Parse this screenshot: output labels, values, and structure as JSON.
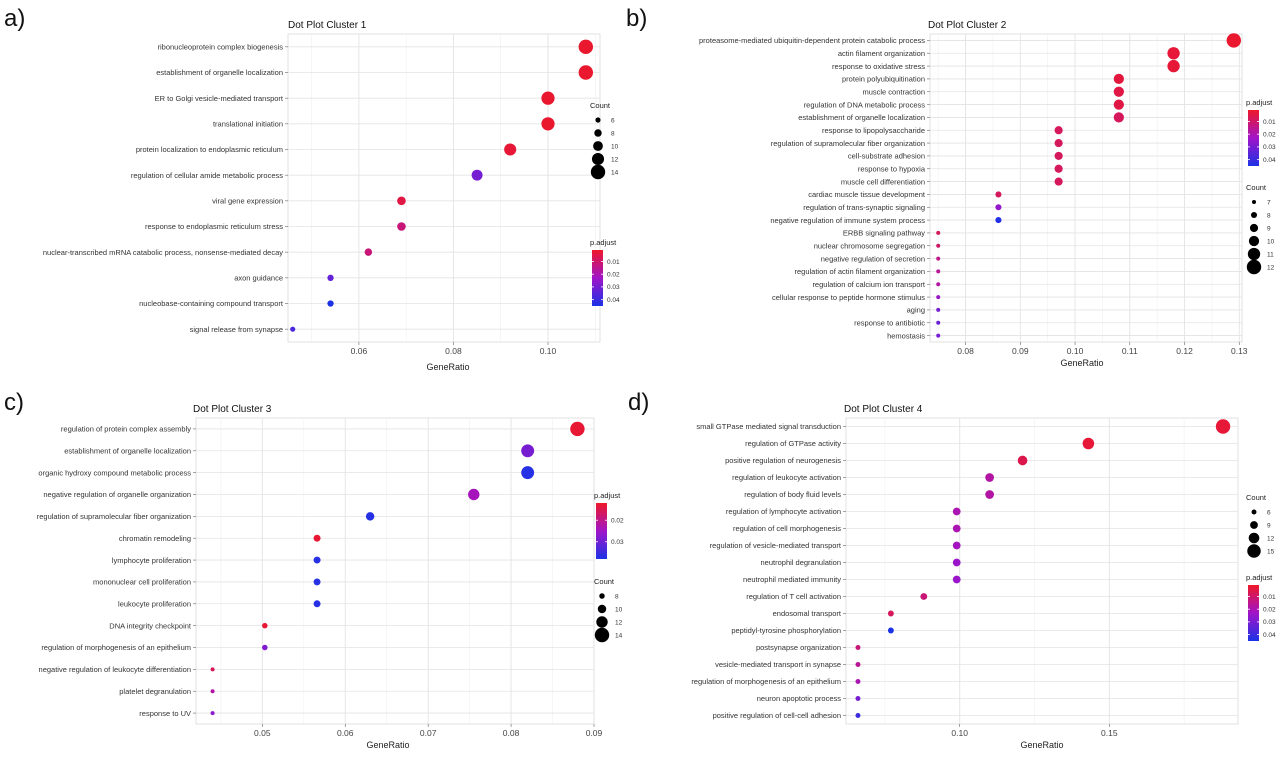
{
  "chart_data": [
    {
      "panel": "a)",
      "type": "scatter",
      "title": "Dot Plot Cluster 1",
      "xlabel": "GeneRatio",
      "ylabel": "",
      "xlim": [
        0.045,
        0.111
      ],
      "xticks": [
        0.06,
        0.08,
        0.1
      ],
      "xtick_labels": [
        "0.06",
        "0.08",
        "0.10"
      ],
      "color_legend": {
        "title": "p.adjust",
        "ticks": [
          0.01,
          0.02,
          0.03,
          0.04
        ],
        "tick_labels": [
          "0.01",
          "0.02",
          "0.03",
          "0.04"
        ],
        "range": [
          0.001,
          0.045
        ]
      },
      "size_legend": {
        "title": "Count",
        "values": [
          6,
          8,
          10,
          12,
          14
        ],
        "labels": [
          "6",
          "8",
          "10",
          "12",
          "14"
        ],
        "range": [
          5,
          14
        ]
      },
      "legend_order": [
        "size",
        "color"
      ],
      "terms": [
        "ribonucleoprotein complex biogenesis",
        "establishment of organelle localization",
        "ER to Golgi vesicle-mediated transport",
        "translational initiation",
        "protein localization to endoplasmic reticulum",
        "regulation of cellular amide metabolic process",
        "viral gene expression",
        "response to endoplasmic reticulum stress",
        "nuclear-transcribed mRNA catabolic process, nonsense-mediated decay",
        "axon guidance",
        "nucleobase-containing compound transport",
        "signal release from synapse"
      ],
      "gene_ratio": [
        0.108,
        0.108,
        0.1,
        0.1,
        0.092,
        0.085,
        0.069,
        0.069,
        0.062,
        0.054,
        0.054,
        0.046
      ],
      "count": [
        14,
        14,
        13,
        13,
        12,
        11,
        9,
        9,
        8,
        7,
        7,
        6
      ],
      "p_adjust": [
        0.002,
        0.002,
        0.002,
        0.002,
        0.003,
        0.03,
        0.005,
        0.012,
        0.012,
        0.033,
        0.045,
        0.037
      ]
    },
    {
      "panel": "b)",
      "type": "scatter",
      "title": "Dot Plot Cluster 2",
      "xlabel": "GeneRatio",
      "ylabel": "",
      "xlim": [
        0.0735,
        0.1305
      ],
      "xticks": [
        0.08,
        0.09,
        0.1,
        0.11,
        0.12,
        0.13
      ],
      "xtick_labels": [
        "0.08",
        "0.09",
        "0.10",
        "0.11",
        "0.12",
        "0.13"
      ],
      "color_legend": {
        "title": "p.adjust",
        "ticks": [
          0.01,
          0.02,
          0.03,
          0.04
        ],
        "tick_labels": [
          "0.01",
          "0.02",
          "0.03",
          "0.04"
        ],
        "range": [
          0.001,
          0.045
        ]
      },
      "size_legend": {
        "title": "Count",
        "values": [
          7,
          8,
          9,
          10,
          11,
          12
        ],
        "labels": [
          "7",
          "8",
          "9",
          "10",
          "11",
          "12"
        ],
        "range": [
          7,
          12
        ]
      },
      "legend_order": [
        "color",
        "size"
      ],
      "terms": [
        "proteasome-mediated ubiquitin-dependent protein catabolic process",
        "actin filament organization",
        "response to oxidative stress",
        "protein polyubiquitination",
        "muscle contraction",
        "regulation of DNA metabolic process",
        "establishment of organelle localization",
        "response to lipopolysaccharide",
        "regulation of supramolecular fiber organization",
        "cell-substrate adhesion",
        "response to hypoxia",
        "muscle cell differentiation",
        "cardiac muscle tissue development",
        "regulation of trans-synaptic signaling",
        "negative regulation of immune system process",
        "ERBB signaling pathway",
        "nuclear chromosome segregation",
        "negative regulation of secretion",
        "regulation of actin filament organization",
        "regulation of calcium ion transport",
        "cellular response to peptide hormone stimulus",
        "aging",
        "response to antibiotic",
        "hemostasis"
      ],
      "gene_ratio": [
        0.129,
        0.118,
        0.118,
        0.108,
        0.108,
        0.108,
        0.108,
        0.097,
        0.097,
        0.097,
        0.097,
        0.097,
        0.086,
        0.086,
        0.086,
        0.075,
        0.075,
        0.075,
        0.075,
        0.075,
        0.075,
        0.075,
        0.075,
        0.075
      ],
      "count": [
        12,
        11,
        11,
        10,
        10,
        10,
        10,
        9,
        9,
        9,
        9,
        9,
        8,
        8,
        8,
        7,
        7,
        7,
        7,
        7,
        7,
        7,
        7,
        7
      ],
      "p_adjust": [
        0.002,
        0.003,
        0.003,
        0.004,
        0.005,
        0.005,
        0.008,
        0.008,
        0.008,
        0.008,
        0.008,
        0.008,
        0.008,
        0.025,
        0.044,
        0.008,
        0.01,
        0.014,
        0.016,
        0.018,
        0.024,
        0.03,
        0.032,
        0.03
      ]
    },
    {
      "panel": "c)",
      "type": "scatter",
      "title": "Dot Plot Cluster 3",
      "xlabel": "GeneRatio",
      "ylabel": "",
      "xlim": [
        0.042,
        0.09
      ],
      "xticks": [
        0.05,
        0.06,
        0.07,
        0.08,
        0.09
      ],
      "xtick_labels": [
        "0.05",
        "0.06",
        "0.07",
        "0.08",
        "0.09"
      ],
      "color_legend": {
        "title": "p.adjust",
        "ticks": [
          0.02,
          0.03
        ],
        "tick_labels": [
          "0.02",
          "0.03"
        ],
        "range": [
          0.012,
          0.038
        ]
      },
      "size_legend": {
        "title": "Count",
        "values": [
          8,
          10,
          12,
          14
        ],
        "labels": [
          "8",
          "10",
          "12",
          "14"
        ],
        "range": [
          7,
          14
        ]
      },
      "legend_order": [
        "color",
        "size"
      ],
      "terms": [
        "regulation of protein complex assembly",
        "establishment of organelle localization",
        "organic hydroxy compound metabolic process",
        "negative regulation of organelle organization",
        "regulation of supramolecular fiber organization",
        "chromatin remodeling",
        "lymphocyte proliferation",
        "mononuclear cell proliferation",
        "leukocyte proliferation",
        "DNA integrity checkpoint",
        "regulation of morphogenesis of an epithelium",
        "negative regulation of leukocyte differentiation",
        "platelet degranulation",
        "response to UV"
      ],
      "gene_ratio": [
        0.088,
        0.082,
        0.082,
        0.0755,
        0.063,
        0.0566,
        0.0566,
        0.0566,
        0.0566,
        0.0503,
        0.0503,
        0.044,
        0.044,
        0.044
      ],
      "count": [
        14,
        13,
        13,
        12,
        10,
        9,
        9,
        9,
        9,
        8,
        8,
        7,
        7,
        7
      ],
      "p_adjust": [
        0.013,
        0.029,
        0.037,
        0.024,
        0.037,
        0.013,
        0.037,
        0.037,
        0.037,
        0.013,
        0.028,
        0.016,
        0.022,
        0.027
      ]
    },
    {
      "panel": "d)",
      "type": "scatter",
      "title": "Dot Plot Cluster 4",
      "xlabel": "GeneRatio",
      "ylabel": "",
      "xlim": [
        0.062,
        0.193
      ],
      "xticks": [
        0.1,
        0.15
      ],
      "xtick_labels": [
        "0.10",
        "0.15"
      ],
      "color_legend": {
        "title": "p.adjust",
        "ticks": [
          0.01,
          0.02,
          0.03,
          0.04
        ],
        "tick_labels": [
          "0.01",
          "0.02",
          "0.03",
          "0.04"
        ],
        "range": [
          0.001,
          0.045
        ]
      },
      "size_legend": {
        "title": "Count",
        "values": [
          6,
          9,
          12,
          15
        ],
        "labels": [
          "6",
          "9",
          "12",
          "15"
        ],
        "range": [
          5,
          16
        ]
      },
      "legend_order": [
        "size",
        "color"
      ],
      "terms": [
        "small GTPase mediated signal transduction",
        "regulation of GTPase activity",
        "positive regulation of neurogenesis",
        "regulation of leukocyte activation",
        "regulation of body fluid levels",
        "regulation of lymphocyte activation",
        "regulation of cell morphogenesis",
        "regulation of vesicle-mediated transport",
        "neutrophil degranulation",
        "neutrophil mediated immunity",
        "regulation of T cell activation",
        "endosomal transport",
        "peptidyl-tyrosine phosphorylation",
        "postsynapse organization",
        "vesicle-mediated transport in synapse",
        "regulation of morphogenesis of an epithelium",
        "neuron apoptotic process",
        "positive regulation of cell-cell adhesion"
      ],
      "gene_ratio": [
        0.188,
        0.143,
        0.121,
        0.11,
        0.11,
        0.099,
        0.099,
        0.099,
        0.099,
        0.099,
        0.088,
        0.077,
        0.077,
        0.066,
        0.066,
        0.066,
        0.066,
        0.066
      ],
      "count": [
        16,
        13,
        11,
        10,
        10,
        9,
        9,
        9,
        9,
        9,
        8,
        7,
        7,
        6,
        6,
        6,
        6,
        6
      ],
      "p_adjust": [
        0.003,
        0.003,
        0.006,
        0.018,
        0.018,
        0.02,
        0.02,
        0.022,
        0.024,
        0.024,
        0.012,
        0.008,
        0.045,
        0.012,
        0.016,
        0.02,
        0.03,
        0.04
      ]
    }
  ]
}
